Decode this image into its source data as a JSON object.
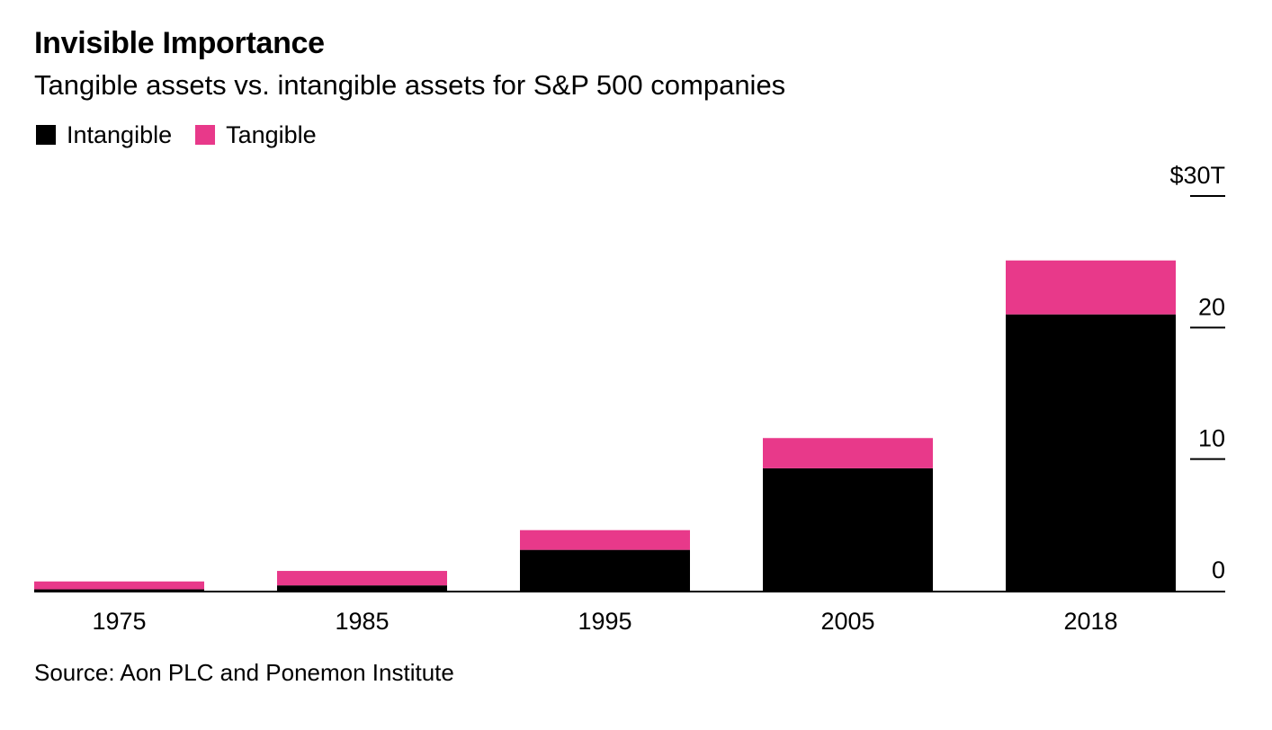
{
  "header": {
    "title": "Invisible Importance",
    "subtitle": "Tangible assets vs. intangible assets for S&P 500 companies"
  },
  "legend": [
    {
      "label": "Intangible",
      "color": "#000000"
    },
    {
      "label": "Tangible",
      "color": "#E8398A"
    }
  ],
  "footer": {
    "source": "Source: Aon PLC and Ponemon Institute"
  },
  "chart_data": {
    "type": "bar",
    "stacked": true,
    "title": "Invisible Importance",
    "subtitle": "Tangible assets vs. intangible assets for S&P 500 companies",
    "xlabel": "",
    "ylabel": "",
    "unit": "$ trillions",
    "categories": [
      "1975",
      "1985",
      "1995",
      "2005",
      "2018"
    ],
    "series": [
      {
        "name": "Intangible",
        "color": "#000000",
        "values": [
          0.1,
          0.4,
          3.1,
          9.3,
          21.0
        ]
      },
      {
        "name": "Tangible",
        "color": "#E8398A",
        "values": [
          0.6,
          1.1,
          1.5,
          2.3,
          4.1
        ]
      }
    ],
    "ylim": [
      0,
      30
    ],
    "yticks": [
      0,
      10,
      20,
      30
    ],
    "ytick_labels": [
      "0",
      "10",
      "20",
      "$30T"
    ],
    "yaxis_side": "right",
    "grid": false,
    "legend_position": "top-left",
    "source": "Source: Aon PLC and Ponemon Institute"
  }
}
